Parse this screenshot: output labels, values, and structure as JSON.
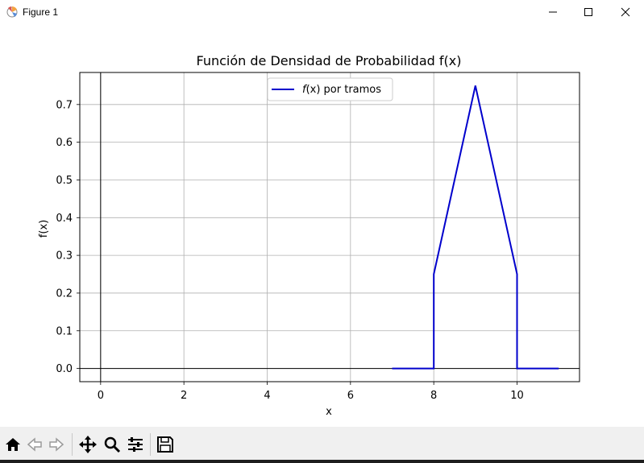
{
  "window": {
    "title": "Figure 1",
    "controls": [
      "minimize",
      "maximize",
      "close"
    ]
  },
  "chart_data": {
    "type": "line",
    "title": "Función de Densidad de Probabilidad f(x)",
    "xlabel": "x",
    "ylabel": "f(x)",
    "xlim": [
      -0.5,
      11.5
    ],
    "ylim": [
      -0.035,
      0.785
    ],
    "xticks": [
      0,
      2,
      4,
      6,
      8,
      10
    ],
    "yticks": [
      0.0,
      0.1,
      0.2,
      0.3,
      0.4,
      0.5,
      0.6,
      0.7
    ],
    "ytick_labels": [
      "0.0",
      "0.1",
      "0.2",
      "0.3",
      "0.4",
      "0.5",
      "0.6",
      "0.7"
    ],
    "grid": true,
    "legend": {
      "placement": "upper center",
      "italic_part": "f",
      "rest": "(x) por tramos"
    },
    "reference_lines": {
      "vertical_at_x": 0,
      "horizontal_at_y": 0
    },
    "series": [
      {
        "name": "f(x) por tramos",
        "color": "#0000cc",
        "x": [
          7,
          8,
          8,
          9,
          10,
          10,
          11
        ],
        "y": [
          0,
          0,
          0.25,
          0.75,
          0.25,
          0,
          0
        ]
      }
    ]
  },
  "toolbar": {
    "icons": [
      "home-icon",
      "back-icon",
      "forward-icon",
      "pan-icon",
      "zoom-icon",
      "configure-subplots-icon",
      "save-icon"
    ]
  }
}
